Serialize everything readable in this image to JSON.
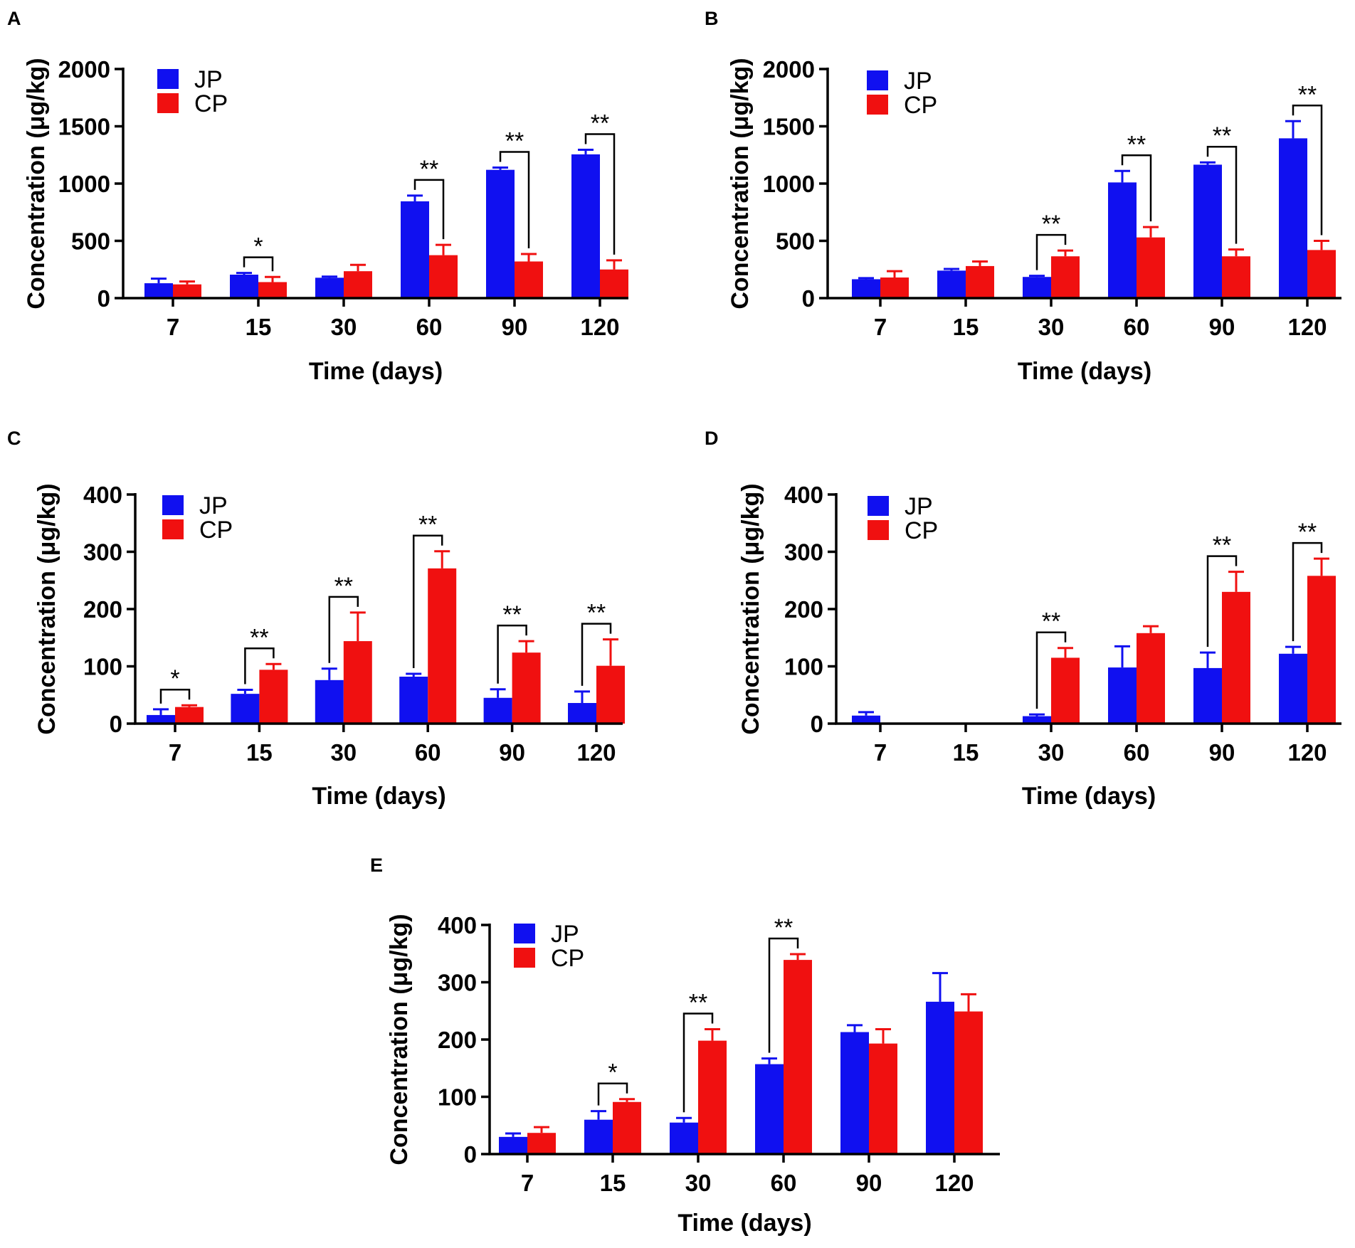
{
  "colors": {
    "jp": "#1010f0",
    "cp": "#f01010",
    "axis": "#000000"
  },
  "chart_data": [
    {
      "panel": "A",
      "type": "bar",
      "categories": [
        "7",
        "15",
        "30",
        "60",
        "90",
        "120"
      ],
      "xlabel": "Time (days)",
      "ylabel": "Concentration (μg/kg)",
      "ylim": [
        0,
        2000
      ],
      "yticks": [
        "0",
        "500",
        "1000",
        "1500",
        "2000"
      ],
      "legend": [
        "JP",
        "CP"
      ],
      "series": [
        {
          "name": "JP",
          "values": [
            130,
            205,
            178,
            845,
            1120,
            1255
          ],
          "errors": [
            40,
            15,
            10,
            50,
            20,
            40
          ]
        },
        {
          "name": "CP",
          "values": [
            120,
            140,
            235,
            375,
            320,
            250
          ],
          "errors": [
            25,
            45,
            55,
            90,
            65,
            80
          ]
        }
      ],
      "significance": [
        {
          "category": "15",
          "label": "*"
        },
        {
          "category": "60",
          "label": "**"
        },
        {
          "category": "90",
          "label": "**"
        },
        {
          "category": "120",
          "label": "**"
        }
      ]
    },
    {
      "panel": "B",
      "type": "bar",
      "categories": [
        "7",
        "15",
        "30",
        "60",
        "90",
        "120"
      ],
      "xlabel": "Time (days)",
      "ylabel": "Concentration (μg/kg)",
      "ylim": [
        0,
        2000
      ],
      "yticks": [
        "0",
        "500",
        "1000",
        "1500",
        "2000"
      ],
      "legend": [
        "JP",
        "CP"
      ],
      "series": [
        {
          "name": "JP",
          "values": [
            165,
            240,
            185,
            1010,
            1165,
            1395
          ],
          "errors": [
            10,
            15,
            10,
            100,
            20,
            150
          ]
        },
        {
          "name": "CP",
          "values": [
            180,
            280,
            365,
            530,
            365,
            420
          ],
          "errors": [
            55,
            40,
            50,
            90,
            60,
            80
          ]
        }
      ],
      "significance": [
        {
          "category": "30",
          "label": "**"
        },
        {
          "category": "60",
          "label": "**"
        },
        {
          "category": "90",
          "label": "**"
        },
        {
          "category": "120",
          "label": "**"
        }
      ]
    },
    {
      "panel": "C",
      "type": "bar",
      "categories": [
        "7",
        "15",
        "30",
        "60",
        "90",
        "120"
      ],
      "xlabel": "Time (days)",
      "ylabel": "Concentration (μg/kg)",
      "ylim": [
        0,
        400
      ],
      "yticks": [
        "0",
        "100",
        "200",
        "300",
        "400"
      ],
      "legend": [
        "JP",
        "CP"
      ],
      "series": [
        {
          "name": "JP",
          "values": [
            15,
            52,
            76,
            82,
            45,
            36
          ],
          "errors": [
            10,
            7,
            20,
            5,
            15,
            20
          ]
        },
        {
          "name": "CP",
          "values": [
            29,
            94,
            144,
            271,
            124,
            101
          ],
          "errors": [
            3,
            10,
            50,
            30,
            20,
            46
          ]
        }
      ],
      "significance": [
        {
          "category": "7",
          "label": "*"
        },
        {
          "category": "15",
          "label": "**"
        },
        {
          "category": "30",
          "label": "**"
        },
        {
          "category": "60",
          "label": "**"
        },
        {
          "category": "90",
          "label": "**"
        },
        {
          "category": "120",
          "label": "**"
        }
      ]
    },
    {
      "panel": "D",
      "type": "bar",
      "categories": [
        "7",
        "15",
        "30",
        "60",
        "90",
        "120"
      ],
      "xlabel": "Time (days)",
      "ylabel": "Concentration (μg/kg)",
      "ylim": [
        0,
        400
      ],
      "yticks": [
        "0",
        "100",
        "200",
        "300",
        "400"
      ],
      "legend": [
        "JP",
        "CP"
      ],
      "series": [
        {
          "name": "JP",
          "values": [
            14,
            0,
            13,
            98,
            97,
            122
          ],
          "errors": [
            6,
            0,
            3,
            37,
            27,
            12
          ]
        },
        {
          "name": "CP",
          "values": [
            0,
            0,
            115,
            158,
            230,
            258
          ],
          "errors": [
            0,
            0,
            17,
            12,
            35,
            30
          ]
        }
      ],
      "significance": [
        {
          "category": "30",
          "label": "**"
        },
        {
          "category": "90",
          "label": "**"
        },
        {
          "category": "120",
          "label": "**"
        }
      ]
    },
    {
      "panel": "E",
      "type": "bar",
      "categories": [
        "7",
        "15",
        "30",
        "60",
        "90",
        "120"
      ],
      "xlabel": "Time (days)",
      "ylabel": "Concentration (μg/kg)",
      "ylim": [
        0,
        400
      ],
      "yticks": [
        "0",
        "100",
        "200",
        "300",
        "400"
      ],
      "legend": [
        "JP",
        "CP"
      ],
      "series": [
        {
          "name": "JP",
          "values": [
            30,
            60,
            55,
            157,
            213,
            266
          ],
          "errors": [
            6,
            15,
            8,
            10,
            12,
            50
          ]
        },
        {
          "name": "CP",
          "values": [
            37,
            91,
            198,
            339,
            193,
            249
          ],
          "errors": [
            10,
            5,
            20,
            10,
            25,
            30
          ]
        }
      ],
      "significance": [
        {
          "category": "15",
          "label": "*"
        },
        {
          "category": "30",
          "label": "**"
        },
        {
          "category": "60",
          "label": "**"
        }
      ]
    }
  ]
}
